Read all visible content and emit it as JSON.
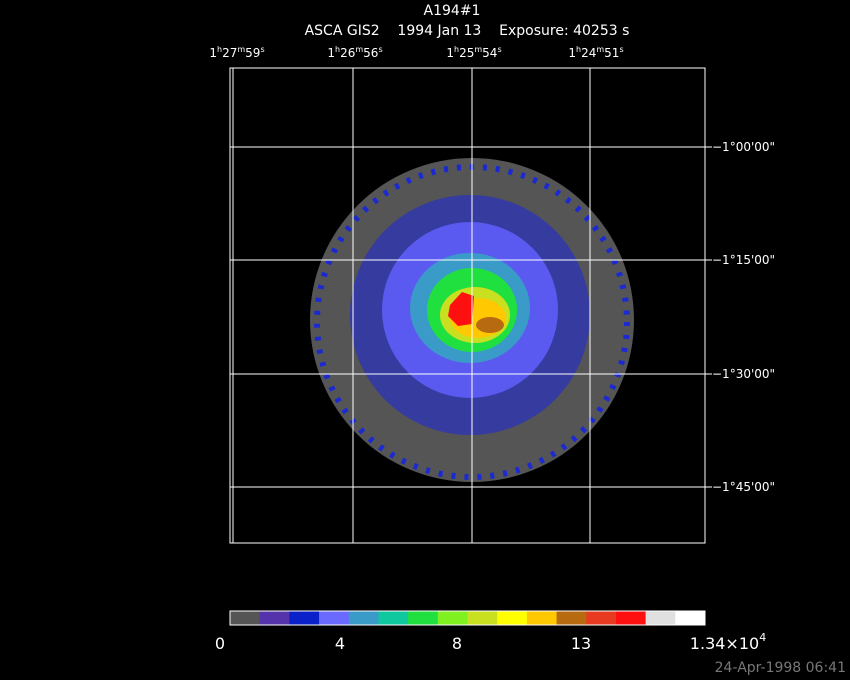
{
  "title": "A194#1",
  "subtitle": "ASCA GIS2    1994 Jan 13    Exposure: 40253 s",
  "ra_ticks": [
    [
      "1",
      "h",
      "27",
      "m",
      "59",
      "s"
    ],
    [
      "1",
      "h",
      "26",
      "m",
      "56",
      "s"
    ],
    [
      "1",
      "h",
      "25",
      "m",
      "54",
      "s"
    ],
    [
      "1",
      "h",
      "24",
      "m",
      "51",
      "s"
    ]
  ],
  "dec_ticks": [
    "−1°00'00\"",
    "−1°15'00\"",
    "−1°30'00\"",
    "−1°45'00\""
  ],
  "colorbar": {
    "colors": [
      "#555555",
      "#5533aa",
      "#0a20c8",
      "#6a6aff",
      "#3a9ac8",
      "#10c8a0",
      "#20e040",
      "#80f020",
      "#c8e020",
      "#ffff00",
      "#ffc800",
      "#b86a10",
      "#e83a20",
      "#ff1010",
      "#e0e0e0",
      "#ffffff"
    ],
    "labels": [
      [
        "0"
      ],
      [
        "4"
      ],
      [
        "8"
      ],
      [
        "13"
      ],
      [
        "1.34×10",
        "4"
      ]
    ]
  },
  "timestamp": "24-Apr-1998 06:41"
}
